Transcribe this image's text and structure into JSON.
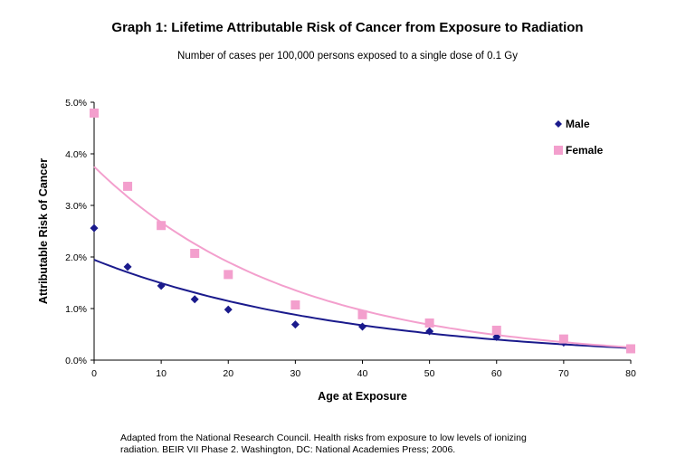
{
  "title": "Graph 1: Lifetime Attributable Risk of Cancer from Exposure to Radiation",
  "subtitle": "Number of cases per 100,000 persons exposed to a single dose of 0.1 Gy",
  "source_line1": "Adapted from the National Research Council. Health risks from exposure to low levels of ionizing",
  "source_line2": "radiation. BEIR VII Phase 2. Washington, DC: National Academies Press; 2006.",
  "chart_data": {
    "type": "scatter",
    "title": "Graph 1: Lifetime Attributable Risk of Cancer from Exposure to Radiation",
    "subtitle": "Number of cases per 100,000 persons exposed to a single dose of 0.1 Gy",
    "xlabel": "Age at Exposure",
    "ylabel": "Attributable Risk of Cancer",
    "xlim": [
      0,
      80
    ],
    "ylim": [
      0,
      5.0
    ],
    "x_ticks": [
      0,
      10,
      20,
      30,
      40,
      50,
      60,
      70,
      80
    ],
    "y_ticks": [
      "0.0%",
      "1.0%",
      "2.0%",
      "3.0%",
      "4.0%",
      "5.0%"
    ],
    "y_tick_values": [
      0,
      1,
      2,
      3,
      4,
      5
    ],
    "legend_position": "top-right",
    "grid": false,
    "trendline": "exponential",
    "series": [
      {
        "name": "Male",
        "marker": "diamond",
        "color": "#1a1a8c",
        "x": [
          0,
          5,
          10,
          15,
          20,
          30,
          40,
          50,
          60,
          70,
          80
        ],
        "y": [
          2.56,
          1.81,
          1.44,
          1.18,
          0.98,
          0.69,
          0.65,
          0.56,
          0.45,
          0.34,
          0.22
        ]
      },
      {
        "name": "Female",
        "marker": "square",
        "color": "#f39fcd",
        "x": [
          0,
          5,
          10,
          15,
          20,
          30,
          40,
          50,
          60,
          70,
          80
        ],
        "y": [
          4.79,
          3.37,
          2.61,
          2.07,
          1.66,
          1.07,
          0.88,
          0.72,
          0.58,
          0.41,
          0.22
        ]
      }
    ]
  }
}
